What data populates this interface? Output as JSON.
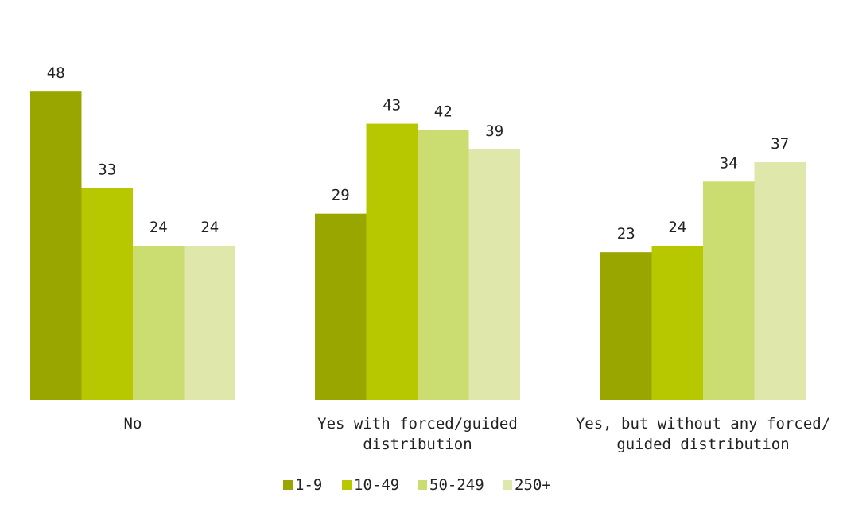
{
  "chart_data": {
    "type": "bar",
    "title": "",
    "xlabel": "",
    "ylabel": "",
    "ylim": [
      0,
      50
    ],
    "grid": false,
    "legend_position": "bottom",
    "categories": [
      {
        "lines": [
          "No"
        ]
      },
      {
        "lines": [
          "Yes with forced/guided",
          "distribution"
        ]
      },
      {
        "lines": [
          "Yes, but without any forced/",
          "guided distribution"
        ]
      }
    ],
    "series": [
      {
        "name": "1-9",
        "color": "#9aa600",
        "values": [
          48,
          29,
          23
        ]
      },
      {
        "name": "10-49",
        "color": "#b8c800",
        "values": [
          33,
          43,
          24
        ]
      },
      {
        "name": "50-249",
        "color": "#cbdc70",
        "values": [
          24,
          42,
          34
        ]
      },
      {
        "name": "250+",
        "color": "#dfe8aa",
        "values": [
          24,
          39,
          37
        ]
      }
    ]
  }
}
